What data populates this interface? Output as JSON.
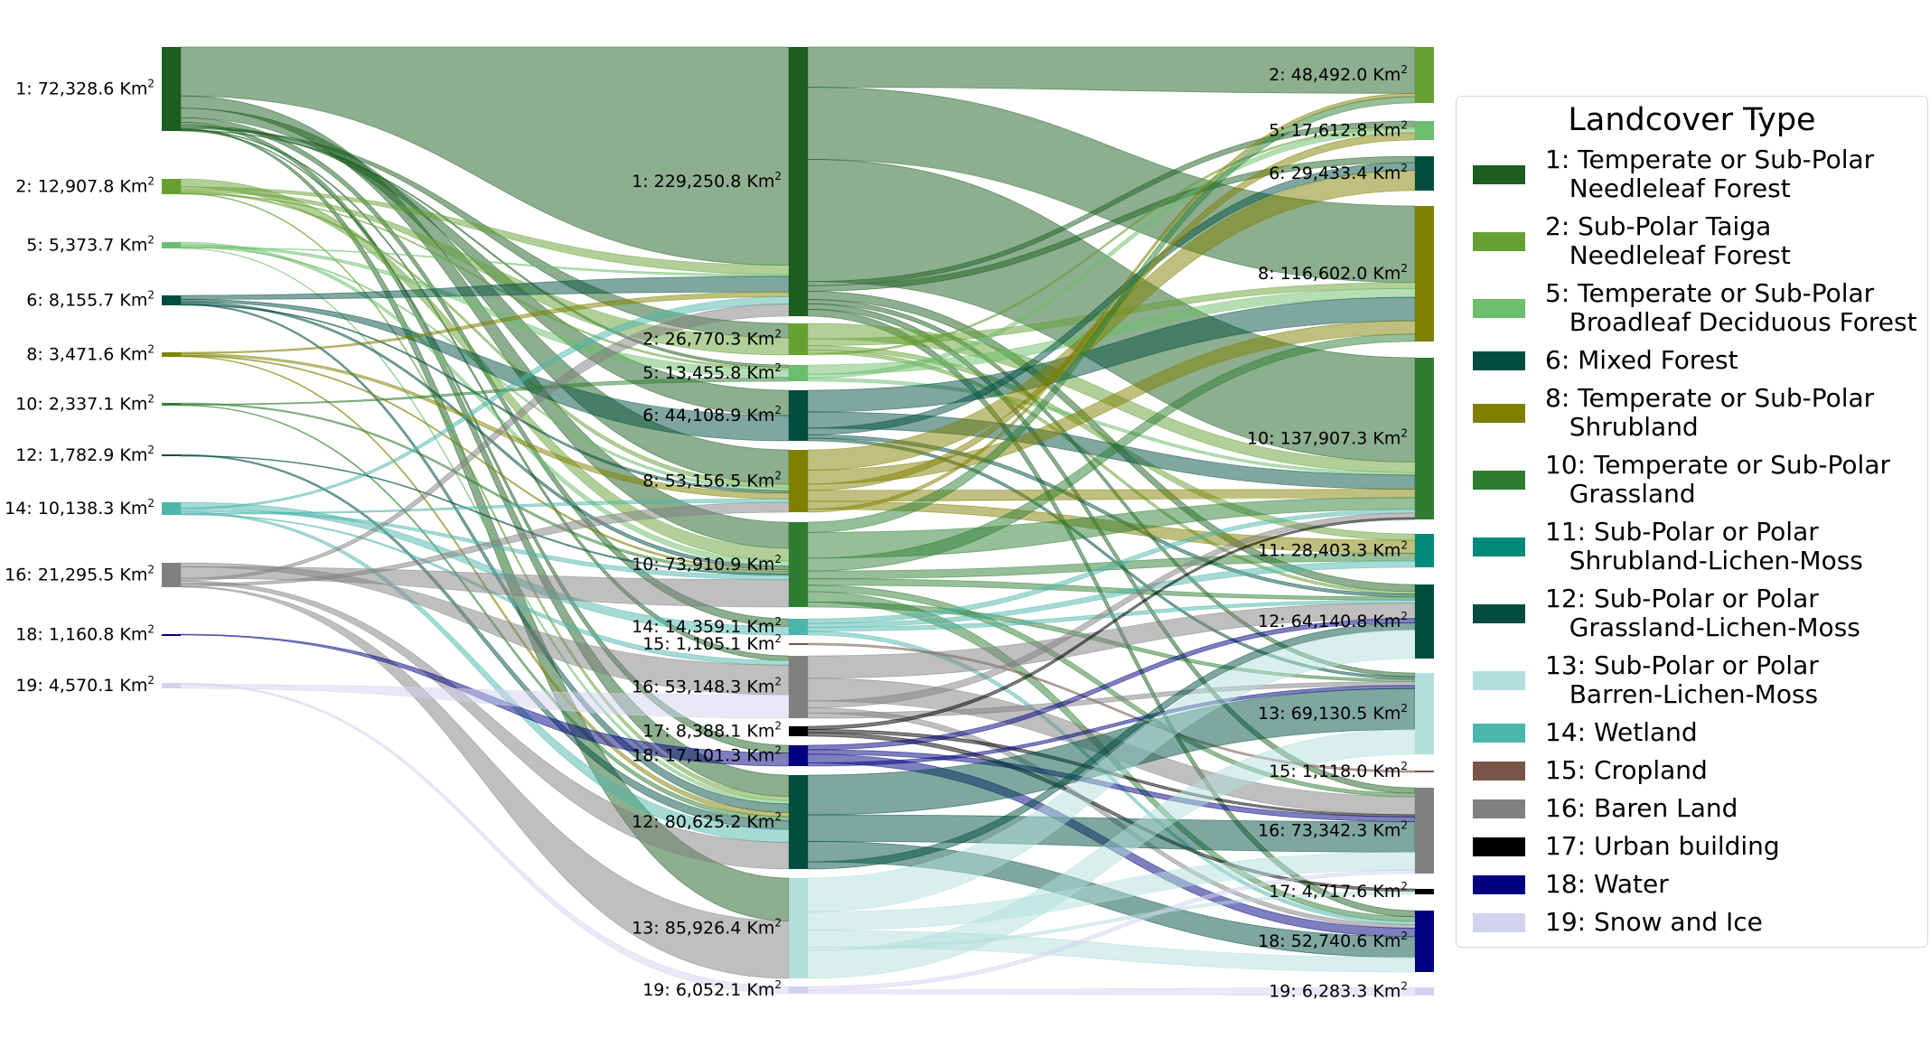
{
  "unit_label": "Km",
  "unit_power": "2",
  "legend": {
    "title": "Landcover Type",
    "items": [
      {
        "code": "1",
        "lines": [
          "1: Temperate or Sub-Polar",
          "Needleleaf Forest"
        ],
        "color": "#1b5e20"
      },
      {
        "code": "2",
        "lines": [
          "2: Sub-Polar Taiga",
          "Needleleaf Forest"
        ],
        "color": "#66a033"
      },
      {
        "code": "5",
        "lines": [
          "5: Temperate or Sub-Polar",
          "Broadleaf Deciduous Forest"
        ],
        "color": "#6cbe6c"
      },
      {
        "code": "6",
        "lines": [
          "6: Mixed Forest"
        ],
        "color": "#004d40"
      },
      {
        "code": "8",
        "lines": [
          "8: Temperate or Sub-Polar",
          "Shrubland"
        ],
        "color": "#808000"
      },
      {
        "code": "10",
        "lines": [
          "10: Temperate or Sub-Polar",
          "Grassland"
        ],
        "color": "#2e7d32"
      },
      {
        "code": "11",
        "lines": [
          "11: Sub-Polar or Polar",
          "Shrubland-Lichen-Moss"
        ],
        "color": "#00897b"
      },
      {
        "code": "12",
        "lines": [
          "12: Sub-Polar or Polar",
          "Grassland-Lichen-Moss"
        ],
        "color": "#004d40"
      },
      {
        "code": "13",
        "lines": [
          "13: Sub-Polar or Polar",
          "Barren-Lichen-Moss"
        ],
        "color": "#b2dfdb"
      },
      {
        "code": "14",
        "lines": [
          "14: Wetland"
        ],
        "color": "#4db6ac"
      },
      {
        "code": "15",
        "lines": [
          "15: Cropland"
        ],
        "color": "#795548"
      },
      {
        "code": "16",
        "lines": [
          "16: Baren Land"
        ],
        "color": "#808080"
      },
      {
        "code": "17",
        "lines": [
          "17: Urban building"
        ],
        "color": "#000000"
      },
      {
        "code": "18",
        "lines": [
          "18: Water"
        ],
        "color": "#000080"
      },
      {
        "code": "19",
        "lines": [
          "19: Snow and Ice"
        ],
        "color": "#d1d1f0"
      }
    ]
  },
  "columns": [
    {
      "nodes": [
        {
          "code": "1",
          "label": "1: 72,328.6"
        },
        {
          "code": "2",
          "label": "2: 12,907.8"
        },
        {
          "code": "5",
          "label": "5: 5,373.7"
        },
        {
          "code": "6",
          "label": "6: 8,155.7"
        },
        {
          "code": "8",
          "label": "8: 3,471.6"
        },
        {
          "code": "10",
          "label": "10: 2,337.1"
        },
        {
          "code": "12",
          "label": "12: 1,782.9"
        },
        {
          "code": "14",
          "label": "14: 10,138.3"
        },
        {
          "code": "16",
          "label": "16: 21,295.5"
        },
        {
          "code": "18",
          "label": "18: 1,160.8"
        },
        {
          "code": "19",
          "label": "19: 4,570.1"
        }
      ]
    },
    {
      "nodes": [
        {
          "code": "1",
          "label": "1: 229,250.8"
        },
        {
          "code": "2",
          "label": "2: 26,770.3"
        },
        {
          "code": "5",
          "label": "5: 13,455.8"
        },
        {
          "code": "6",
          "label": "6: 44,108.9"
        },
        {
          "code": "8",
          "label": "8: 53,156.5"
        },
        {
          "code": "10",
          "label": "10: 73,910.9"
        },
        {
          "code": "14",
          "label": "14: 14,359.1"
        },
        {
          "code": "15",
          "label": "15: 1,105.1"
        },
        {
          "code": "16",
          "label": "16: 53,148.3"
        },
        {
          "code": "17",
          "label": "17: 8,388.1"
        },
        {
          "code": "18",
          "label": "18: 17,101.3"
        },
        {
          "code": "12",
          "label": "12: 80,625.2"
        },
        {
          "code": "13",
          "label": "13: 85,926.4"
        },
        {
          "code": "19",
          "label": "19: 6,052.1"
        }
      ]
    },
    {
      "nodes": [
        {
          "code": "2",
          "label": "2: 48,492.0"
        },
        {
          "code": "5",
          "label": "5: 17,612.8"
        },
        {
          "code": "6",
          "label": "6: 29,433.4"
        },
        {
          "code": "8",
          "label": "8: 116,602.0"
        },
        {
          "code": "10",
          "label": "10: 137,907.3"
        },
        {
          "code": "11",
          "label": "11: 28,403.3"
        },
        {
          "code": "12",
          "label": "12: 64,140.8"
        },
        {
          "code": "13",
          "label": "13: 69,130.5"
        },
        {
          "code": "15",
          "label": "15: 1,118.0"
        },
        {
          "code": "16",
          "label": "16: 73,342.3"
        },
        {
          "code": "17",
          "label": "17: 4,717.6"
        },
        {
          "code": "18",
          "label": "18: 52,740.6"
        },
        {
          "code": "19",
          "label": "19: 6,283.3"
        }
      ]
    }
  ],
  "links": [
    {
      "from": "0:1",
      "to": "1:1",
      "value": 36000
    },
    {
      "from": "0:1",
      "to": "1:10",
      "value": 9000
    },
    {
      "from": "0:1",
      "to": "1:8",
      "value": 7000
    },
    {
      "from": "0:1",
      "to": "1:14",
      "value": 3500
    },
    {
      "from": "0:1",
      "to": "1:12",
      "value": 2000
    },
    {
      "from": "0:1",
      "to": "1:6",
      "value": 1500
    },
    {
      "from": "0:1",
      "to": "1:2",
      "value": 1000
    },
    {
      "from": "0:1",
      "to": "1:13",
      "value": 600
    },
    {
      "from": "0:1",
      "to": "1:16",
      "value": 500
    },
    {
      "from": "0:1",
      "to": "1:5",
      "value": 400
    },
    {
      "from": "0:1",
      "to": "1:18",
      "value": 300
    },
    {
      "from": "0:2",
      "to": "1:10",
      "value": 4500
    },
    {
      "from": "0:2",
      "to": "1:1",
      "value": 1500
    },
    {
      "from": "0:2",
      "to": "1:2",
      "value": 1200
    },
    {
      "from": "0:2",
      "to": "1:8",
      "value": 800
    },
    {
      "from": "0:2",
      "to": "1:12",
      "value": 400
    },
    {
      "from": "0:2",
      "to": "1:5",
      "value": 300
    },
    {
      "from": "0:5",
      "to": "1:10",
      "value": 1800
    },
    {
      "from": "0:5",
      "to": "1:5",
      "value": 1300
    },
    {
      "from": "0:5",
      "to": "1:8",
      "value": 500
    },
    {
      "from": "0:5",
      "to": "1:1",
      "value": 300
    },
    {
      "from": "0:5",
      "to": "1:12",
      "value": 300
    },
    {
      "from": "0:6",
      "to": "1:1",
      "value": 2600
    },
    {
      "from": "0:6",
      "to": "1:6",
      "value": 1500
    },
    {
      "from": "0:6",
      "to": "1:10",
      "value": 1200
    },
    {
      "from": "0:6",
      "to": "1:12",
      "value": 800
    },
    {
      "from": "0:6",
      "to": "1:8",
      "value": 500
    },
    {
      "from": "0:8",
      "to": "1:1",
      "value": 800
    },
    {
      "from": "0:8",
      "to": "1:8",
      "value": 1200
    },
    {
      "from": "0:8",
      "to": "1:10",
      "value": 600
    },
    {
      "from": "0:8",
      "to": "1:12",
      "value": 400
    },
    {
      "from": "0:10",
      "to": "1:10",
      "value": 900
    },
    {
      "from": "0:10",
      "to": "1:5",
      "value": 600
    },
    {
      "from": "0:10",
      "to": "1:12",
      "value": 400
    },
    {
      "from": "0:12",
      "to": "1:12",
      "value": 800
    },
    {
      "from": "0:12",
      "to": "1:10",
      "value": 500
    },
    {
      "from": "0:14",
      "to": "1:14",
      "value": 3800
    },
    {
      "from": "0:14",
      "to": "1:1",
      "value": 1200
    },
    {
      "from": "0:14",
      "to": "1:10",
      "value": 1500
    },
    {
      "from": "0:14",
      "to": "1:12",
      "value": 1200
    },
    {
      "from": "0:14",
      "to": "1:8",
      "value": 700
    },
    {
      "from": "0:14",
      "to": "1:16",
      "value": 500
    },
    {
      "from": "0:16",
      "to": "1:16",
      "value": 3200
    },
    {
      "from": "0:16",
      "to": "1:10",
      "value": 9500
    },
    {
      "from": "0:16",
      "to": "1:1",
      "value": 2000
    },
    {
      "from": "0:16",
      "to": "1:12",
      "value": 2500
    },
    {
      "from": "0:16",
      "to": "1:8",
      "value": 2000
    },
    {
      "from": "0:16",
      "to": "1:13",
      "value": 800
    },
    {
      "from": "0:18",
      "to": "1:18",
      "value": 500
    },
    {
      "from": "0:19",
      "to": "1:19",
      "value": 900
    },
    {
      "from": "0:19",
      "to": "1:16",
      "value": 2500
    },
    {
      "from": "1:1",
      "to": "2:2",
      "value": 29000
    },
    {
      "from": "1:1",
      "to": "2:8",
      "value": 52000
    },
    {
      "from": "1:1",
      "to": "2:10",
      "value": 88000
    },
    {
      "from": "1:1",
      "to": "2:5",
      "value": 3000
    },
    {
      "from": "1:1",
      "to": "2:6",
      "value": 4000
    },
    {
      "from": "1:1",
      "to": "2:12",
      "value": 6000
    },
    {
      "from": "1:1",
      "to": "2:13",
      "value": 3000
    },
    {
      "from": "1:1",
      "to": "2:16",
      "value": 4000
    },
    {
      "from": "1:1",
      "to": "2:18",
      "value": 5000
    },
    {
      "from": "1:2",
      "to": "2:10",
      "value": 9000
    },
    {
      "from": "1:2",
      "to": "2:8",
      "value": 4000
    },
    {
      "from": "1:2",
      "to": "2:11",
      "value": 2500
    },
    {
      "from": "1:2",
      "to": "2:12",
      "value": 2000
    },
    {
      "from": "1:2",
      "to": "2:5",
      "value": 1000
    },
    {
      "from": "1:5",
      "to": "2:8",
      "value": 6000
    },
    {
      "from": "1:5",
      "to": "2:5",
      "value": 2500
    },
    {
      "from": "1:5",
      "to": "2:10",
      "value": 2000
    },
    {
      "from": "1:6",
      "to": "2:8",
      "value": 16000
    },
    {
      "from": "1:6",
      "to": "2:10",
      "value": 12000
    },
    {
      "from": "1:6",
      "to": "2:6",
      "value": 5000
    },
    {
      "from": "1:6",
      "to": "2:12",
      "value": 2500
    },
    {
      "from": "1:6",
      "to": "2:13",
      "value": 2000
    },
    {
      "from": "1:8",
      "to": "2:6",
      "value": 13000
    },
    {
      "from": "1:8",
      "to": "2:8",
      "value": 9000
    },
    {
      "from": "1:8",
      "to": "2:5",
      "value": 4000
    },
    {
      "from": "1:8",
      "to": "2:10",
      "value": 7000
    },
    {
      "from": "1:8",
      "to": "2:11",
      "value": 5000
    },
    {
      "from": "1:8",
      "to": "2:2",
      "value": 2000
    },
    {
      "from": "1:10",
      "to": "2:2",
      "value": 4000
    },
    {
      "from": "1:10",
      "to": "2:10",
      "value": 10000
    },
    {
      "from": "1:10",
      "to": "2:8",
      "value": 5000
    },
    {
      "from": "1:10",
      "to": "2:11",
      "value": 3000
    },
    {
      "from": "1:10",
      "to": "2:12",
      "value": 2500
    },
    {
      "from": "1:10",
      "to": "2:16",
      "value": 2500
    },
    {
      "from": "1:10",
      "to": "2:18",
      "value": 4000
    },
    {
      "from": "1:10",
      "to": "2:13",
      "value": 2000
    },
    {
      "from": "1:14",
      "to": "2:10",
      "value": 3000
    },
    {
      "from": "1:14",
      "to": "2:11",
      "value": 2500
    },
    {
      "from": "1:14",
      "to": "2:12",
      "value": 2500
    },
    {
      "from": "1:14",
      "to": "2:18",
      "value": 2500
    },
    {
      "from": "1:15",
      "to": "2:15",
      "value": 600
    },
    {
      "from": "1:16",
      "to": "2:12",
      "value": 13000
    },
    {
      "from": "1:16",
      "to": "2:16",
      "value": 13000
    },
    {
      "from": "1:16",
      "to": "2:10",
      "value": 4000
    },
    {
      "from": "1:16",
      "to": "2:18",
      "value": 3000
    },
    {
      "from": "1:16",
      "to": "2:13",
      "value": 3000
    },
    {
      "from": "1:17",
      "to": "2:10",
      "value": 1500
    },
    {
      "from": "1:17",
      "to": "2:16",
      "value": 1500
    },
    {
      "from": "1:17",
      "to": "2:17",
      "value": 1800
    },
    {
      "from": "1:18",
      "to": "2:12",
      "value": 3500
    },
    {
      "from": "1:18",
      "to": "2:16",
      "value": 3500
    },
    {
      "from": "1:18",
      "to": "2:18",
      "value": 7000
    },
    {
      "from": "1:18",
      "to": "2:13",
      "value": 2500
    },
    {
      "from": "1:12",
      "to": "2:13",
      "value": 33000
    },
    {
      "from": "1:12",
      "to": "2:16",
      "value": 22000
    },
    {
      "from": "1:12",
      "to": "2:18",
      "value": 17000
    },
    {
      "from": "1:12",
      "to": "2:12",
      "value": 6000
    },
    {
      "from": "1:13",
      "to": "2:12",
      "value": 24000
    },
    {
      "from": "1:13",
      "to": "2:16",
      "value": 13000
    },
    {
      "from": "1:13",
      "to": "2:18",
      "value": 12000
    },
    {
      "from": "1:13",
      "to": "2:17",
      "value": 2000
    },
    {
      "from": "1:13",
      "to": "2:13",
      "value": 20000
    },
    {
      "from": "1:19",
      "to": "2:16",
      "value": 2500
    },
    {
      "from": "1:19",
      "to": "2:19",
      "value": 2500
    }
  ]
}
